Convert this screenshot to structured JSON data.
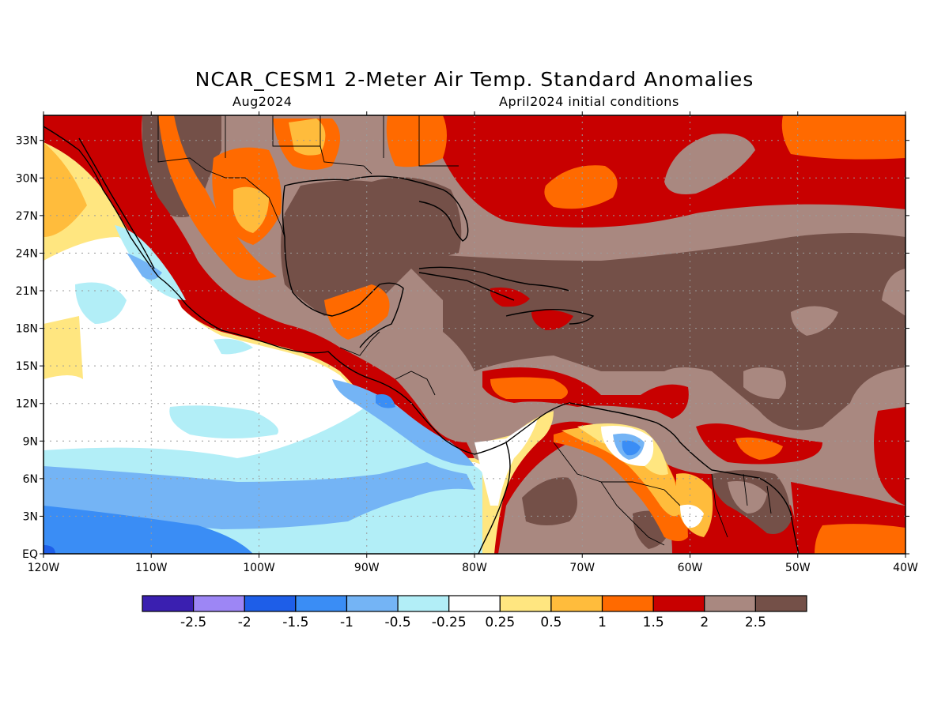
{
  "title": "NCAR_CESM1 2-Meter Air Temp. Standard Anomalies",
  "subtitle_left": "Aug2024",
  "subtitle_right": "April2024 initial conditions",
  "axes": {
    "lat_labels": [
      "33N",
      "30N",
      "27N",
      "24N",
      "21N",
      "18N",
      "15N",
      "12N",
      "9N",
      "6N",
      "3N",
      "EQ"
    ],
    "lat_values": [
      33,
      30,
      27,
      24,
      21,
      18,
      15,
      12,
      9,
      6,
      3,
      0
    ],
    "lon_labels": [
      "120W",
      "110W",
      "100W",
      "90W",
      "80W",
      "70W",
      "60W",
      "50W",
      "40W"
    ],
    "lon_values": [
      -120,
      -110,
      -100,
      -90,
      -80,
      -70,
      -60,
      -50,
      -40
    ],
    "lat_range": [
      0,
      35
    ],
    "lon_range": [
      -120,
      -40
    ],
    "grid": true
  },
  "colorbar": {
    "colors": [
      "#3a1fb0",
      "#9d86f5",
      "#1e5ee8",
      "#3a8df5",
      "#74b4f5",
      "#b2eef7",
      "#ffffff",
      "#ffe680",
      "#ffbc3c",
      "#ff6a00",
      "#c80000",
      "#a98880",
      "#745048"
    ],
    "labels": [
      "-2.5",
      "-2",
      "-1.5",
      "-1",
      "-0.5",
      "-0.25",
      "0.25",
      "0.5",
      "1",
      "1.5",
      "2",
      "2.5"
    ]
  }
}
